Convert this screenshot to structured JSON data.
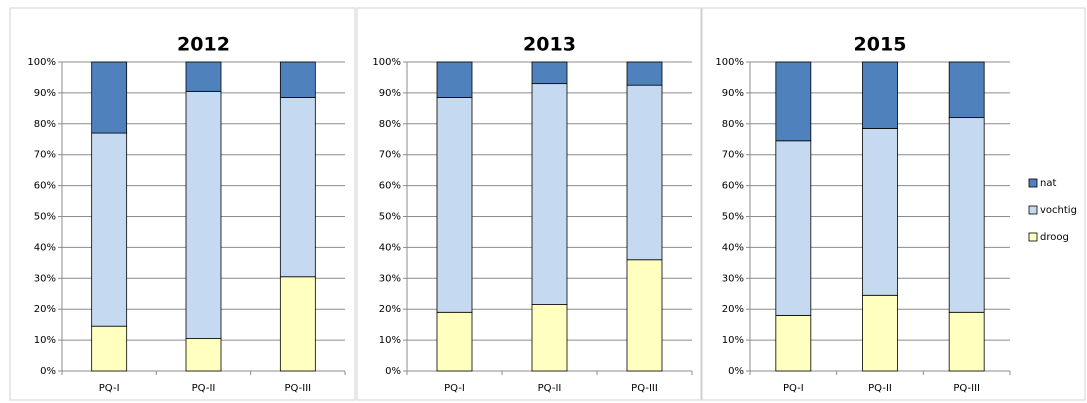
{
  "chart_data": [
    {
      "type": "bar",
      "stacked": true,
      "title": "2012",
      "categories": [
        "PQ-I",
        "PQ-II",
        "PQ-III"
      ],
      "series": [
        {
          "color": "#ffffc0",
          "values": [
            14.5,
            10.5,
            30.5
          ]
        },
        {
          "color": "#c5d9f1",
          "values": [
            62.5,
            80,
            58
          ]
        },
        {
          "color": "#4f81bd",
          "values": [
            23,
            9.5,
            11.5
          ]
        }
      ],
      "ylim": [
        0,
        100
      ],
      "yticks": [
        {
          "value": 0,
          "label": "0%"
        },
        {
          "value": 10,
          "label": "10%"
        },
        {
          "value": 20,
          "label": "20%"
        },
        {
          "value": 30,
          "label": "30%"
        },
        {
          "value": 40,
          "label": "40%"
        },
        {
          "value": 50,
          "label": "50%"
        },
        {
          "value": 60,
          "label": "60%"
        },
        {
          "value": 70,
          "label": "70%"
        },
        {
          "value": 80,
          "label": "80%"
        },
        {
          "value": 90,
          "label": "90%"
        },
        {
          "value": 100,
          "label": "100%"
        }
      ],
      "grid": true
    },
    {
      "type": "bar",
      "stacked": true,
      "title": "2013",
      "categories": [
        "PQ-I",
        "PQ-II",
        "PQ-III"
      ],
      "series": [
        {
          "color": "#ffffc0",
          "values": [
            19,
            21.5,
            36
          ]
        },
        {
          "color": "#c5d9f1",
          "values": [
            69.5,
            71.5,
            56.5
          ]
        },
        {
          "color": "#4f81bd",
          "values": [
            11.5,
            7,
            7.5
          ]
        }
      ],
      "ylim": [
        0,
        100
      ],
      "yticks": [
        {
          "value": 0,
          "label": "0%"
        },
        {
          "value": 10,
          "label": "10%"
        },
        {
          "value": 20,
          "label": "20%"
        },
        {
          "value": 30,
          "label": "30%"
        },
        {
          "value": 40,
          "label": "40%"
        },
        {
          "value": 50,
          "label": "50%"
        },
        {
          "value": 60,
          "label": "60%"
        },
        {
          "value": 70,
          "label": "70%"
        },
        {
          "value": 80,
          "label": "80%"
        },
        {
          "value": 90,
          "label": "90%"
        },
        {
          "value": 100,
          "label": "100%"
        }
      ],
      "grid": true
    },
    {
      "type": "bar",
      "stacked": true,
      "title": "2015",
      "categories": [
        "PQ-I",
        "PQ-II",
        "PQ-III"
      ],
      "series": [
        {
          "name": "droog",
          "color": "#ffffc0",
          "values": [
            18,
            24.5,
            19
          ]
        },
        {
          "name": "vochtig",
          "color": "#c5d9f1",
          "values": [
            56.5,
            54,
            63
          ]
        },
        {
          "name": "nat",
          "color": "#4f81bd",
          "values": [
            25.5,
            21.5,
            18
          ]
        }
      ],
      "ylim": [
        0,
        100
      ],
      "yticks": [
        {
          "value": 0,
          "label": "0%"
        },
        {
          "value": 10,
          "label": "10%"
        },
        {
          "value": 20,
          "label": "20%"
        },
        {
          "value": 30,
          "label": "30%"
        },
        {
          "value": 40,
          "label": "40%"
        },
        {
          "value": 50,
          "label": "50%"
        },
        {
          "value": 60,
          "label": "60%"
        },
        {
          "value": 70,
          "label": "70%"
        },
        {
          "value": 80,
          "label": "80%"
        },
        {
          "value": 90,
          "label": "90%"
        },
        {
          "value": 100,
          "label": "100%"
        }
      ],
      "grid": true,
      "legend": "right"
    }
  ]
}
